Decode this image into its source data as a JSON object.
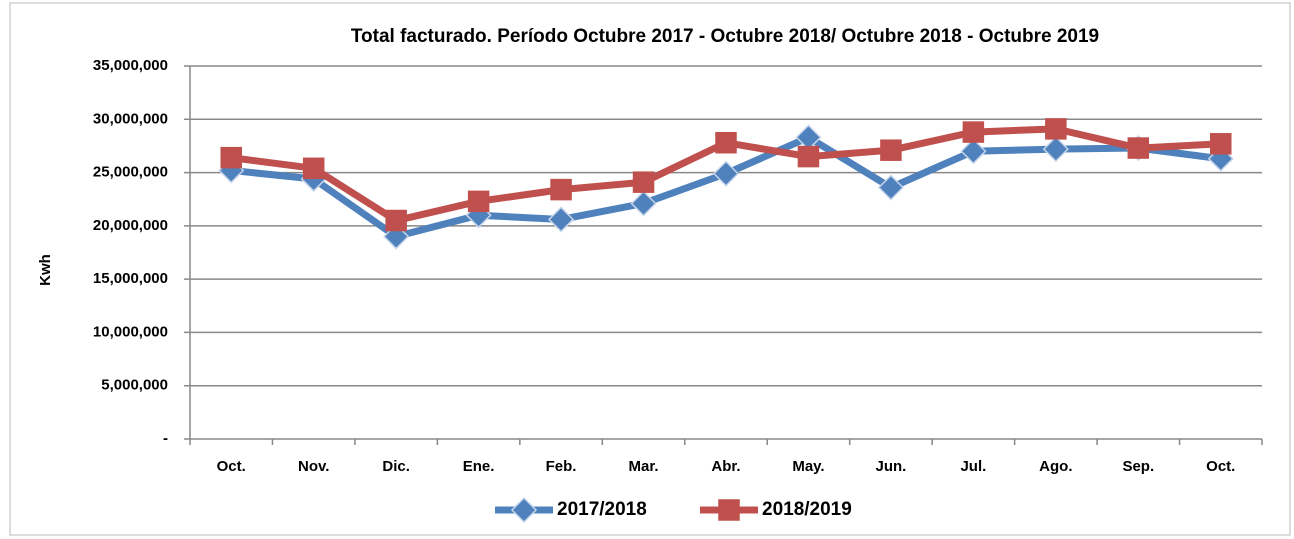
{
  "chart_data": {
    "type": "line",
    "title": "Total facturado. Período Octubre 2017 - Octubre 2018/  Octubre  2018 - Octubre 2019",
    "y_label": "Kwh",
    "categories": [
      "Oct.",
      "Nov.",
      "Dic.",
      "Ene.",
      "Feb.",
      "Mar.",
      "Abr.",
      "May.",
      "Jun.",
      "Jul.",
      "Ago.",
      "Sep.",
      "Oct."
    ],
    "series": [
      {
        "name": "2017/2018",
        "color": "#4f81bd",
        "marker": "diamond",
        "values": [
          25200000,
          24400000,
          19000000,
          21000000,
          20600000,
          22100000,
          24900000,
          28300000,
          23600000,
          27000000,
          27200000,
          27300000,
          26300000
        ]
      },
      {
        "name": "2018/2019",
        "color": "#c0504d",
        "marker": "square",
        "values": [
          26400000,
          25400000,
          20500000,
          22300000,
          23400000,
          24100000,
          27800000,
          26500000,
          27100000,
          28800000,
          29100000,
          27300000,
          27700000
        ]
      }
    ],
    "ylim": [
      0,
      35000000
    ],
    "yticks": [
      {
        "value": 0,
        "label": "-"
      },
      {
        "value": 5000000,
        "label": "5,000,000"
      },
      {
        "value": 10000000,
        "label": "10,000,000"
      },
      {
        "value": 15000000,
        "label": "15,000,000"
      },
      {
        "value": 20000000,
        "label": "20,000,000"
      },
      {
        "value": 25000000,
        "label": "25,000,000"
      },
      {
        "value": 30000000,
        "label": "30,000,000"
      },
      {
        "value": 35000000,
        "label": "35,000,000"
      }
    ],
    "grid": true
  }
}
